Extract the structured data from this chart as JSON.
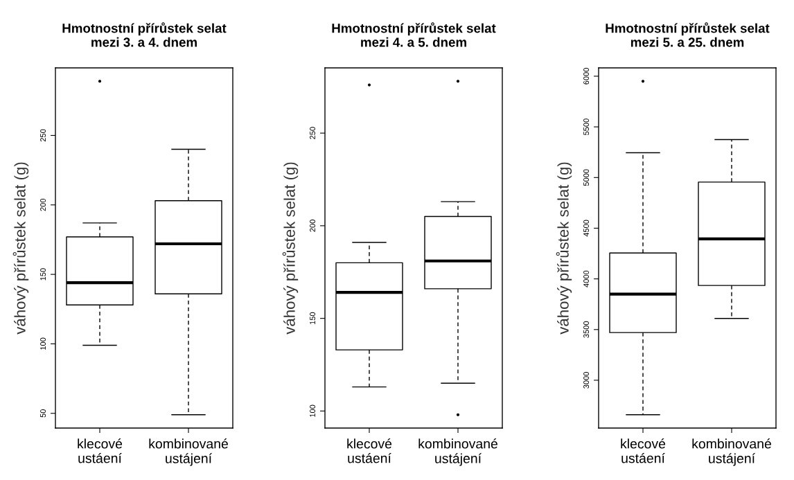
{
  "chart_data": [
    {
      "type": "box",
      "title": "Hmotnostní přírůstek selat\nmezi 3. a 4. dnem",
      "ylabel": "váhový přírůstek selat (g)",
      "categories": [
        "klecové\nustáení",
        "kombinované\nustájení"
      ],
      "boxes": [
        {
          "low": 99,
          "q1": 128,
          "median": 144,
          "q3": 177,
          "high": 187,
          "outliers": [
            289
          ]
        },
        {
          "low": 49,
          "q1": 136,
          "median": 172,
          "q3": 203,
          "high": 240
        }
      ],
      "ylim": [
        39.4,
        298.6
      ],
      "yticks": [
        50,
        100,
        150,
        200,
        250
      ]
    },
    {
      "type": "box",
      "title": "Hmotnostní přírůstek selat\nmezi 4. a 5. dnem",
      "ylabel": "váhový přírůstek selat (g)",
      "categories": [
        "klecové\nustáení",
        "kombinované\nustájení"
      ],
      "boxes": [
        {
          "low": 113,
          "q1": 133,
          "median": 164,
          "q3": 180,
          "high": 191,
          "outliers": [
            276
          ]
        },
        {
          "low": 115,
          "q1": 166,
          "median": 181,
          "q3": 205,
          "high": 213,
          "outliers": [
            278,
            98
          ]
        }
      ],
      "ylim": [
        90.8,
        285.2
      ],
      "yticks": [
        100,
        150,
        200,
        250
      ]
    },
    {
      "type": "box",
      "title": "Hmotnostní přírůstek selat\nmezi 5. a 25. dnem",
      "ylabel": "váhový přírůstek selat (g)",
      "categories": [
        "klecové\nustáení",
        "kombinované\nustájení"
      ],
      "boxes": [
        {
          "low": 2660,
          "q1": 3470,
          "median": 3850,
          "q3": 4255,
          "high": 5245,
          "outliers": [
            5950
          ]
        },
        {
          "low": 3610,
          "q1": 3935,
          "median": 4395,
          "q3": 4955,
          "high": 5375
        }
      ],
      "ylim": [
        2528,
        6082
      ],
      "yticks": [
        3000,
        3500,
        4000,
        4500,
        5000,
        5500,
        6000
      ]
    }
  ]
}
